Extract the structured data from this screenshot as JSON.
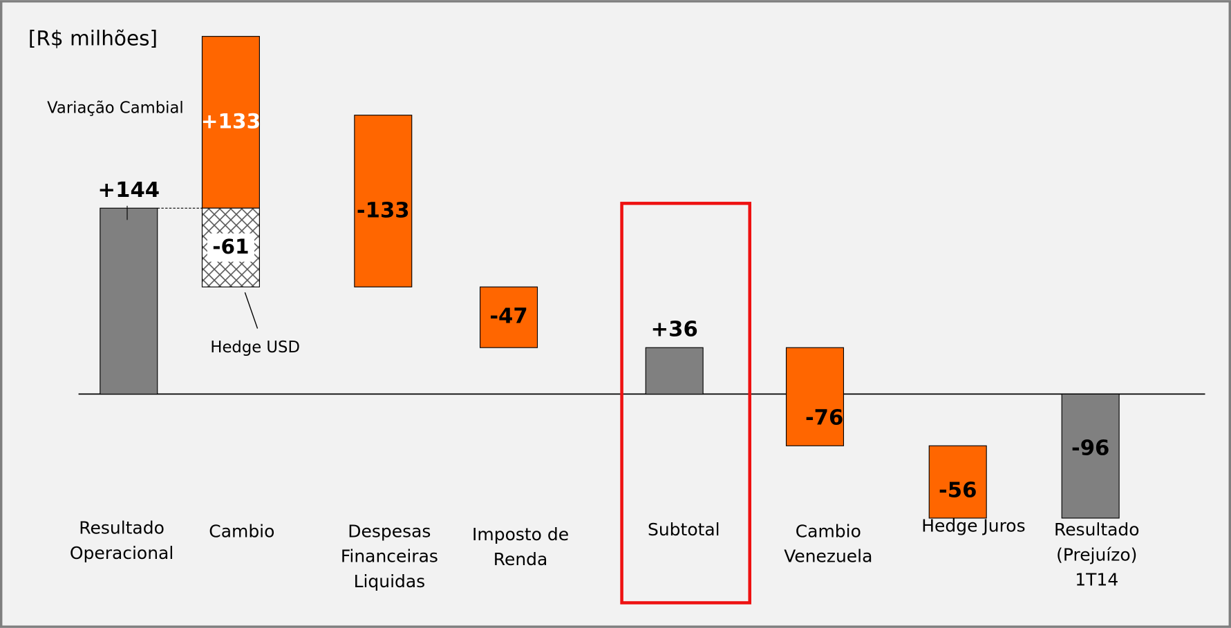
{
  "chart_data": {
    "type": "waterfall",
    "unit_label": "[R$ milhões]",
    "ylim": [
      -181,
      299
    ],
    "colors": {
      "delta": "#ff6600",
      "total": "#808080"
    },
    "bars": [
      {
        "category": [
          "Resultado",
          "Operacional"
        ],
        "kind": "total",
        "value": 144,
        "value_label": "+144"
      },
      {
        "category": [
          "Cambio"
        ],
        "kind": "split",
        "segments": [
          {
            "name": "Variação Cambial",
            "value": 133,
            "value_label": "+133"
          },
          {
            "name": "Hedge USD",
            "value": -61,
            "value_label": "-61",
            "pattern": "crosshatch"
          }
        ]
      },
      {
        "category": [
          "Despesas",
          "Financeiras",
          "Liquidas"
        ],
        "kind": "delta",
        "value": -133,
        "value_label": "-133"
      },
      {
        "category": [
          "Imposto de",
          "Renda"
        ],
        "kind": "delta",
        "value": -47,
        "value_label": "-47"
      },
      {
        "category": [
          "Subtotal"
        ],
        "kind": "total",
        "value": 36,
        "value_label": "+36"
      },
      {
        "category": [
          "Cambio",
          "Venezuela"
        ],
        "kind": "delta",
        "value": -76,
        "value_label": "-76"
      },
      {
        "category": [
          "Hedge Juros"
        ],
        "kind": "delta",
        "value": -56,
        "value_label": "-56"
      },
      {
        "category": [
          "Resultado",
          "(Prejuízo)",
          "1T14"
        ],
        "kind": "total",
        "value": -96,
        "value_label": "-96"
      }
    ]
  }
}
